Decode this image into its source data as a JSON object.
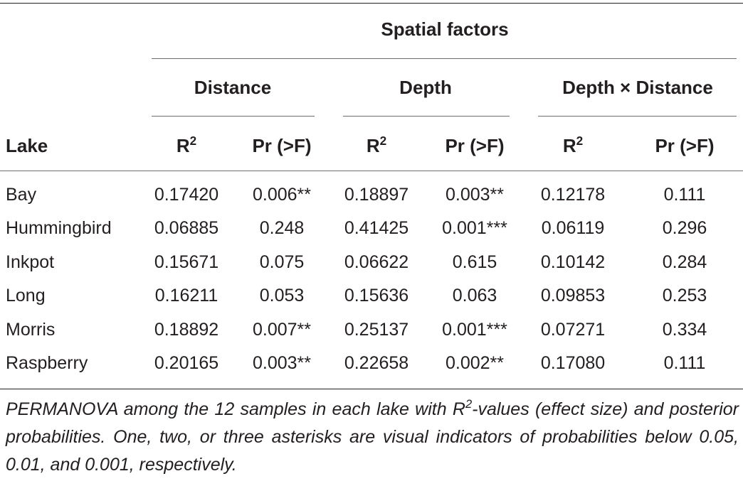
{
  "table": {
    "spanner": "Spatial factors",
    "groups": [
      "Distance",
      "Depth",
      "Depth × Distance"
    ],
    "row_header": "Lake",
    "r2_base": "R",
    "r2_sup": "2",
    "pr_label": "Pr (>F)",
    "rows": [
      {
        "lake": "Bay",
        "dist_r2": "0.17420",
        "dist_pr": "0.006**",
        "depth_r2": "0.18897",
        "depth_pr": "0.003**",
        "dd_r2": "0.12178",
        "dd_pr": "0.111"
      },
      {
        "lake": "Hummingbird",
        "dist_r2": "0.06885",
        "dist_pr": "0.248",
        "depth_r2": "0.41425",
        "depth_pr": "0.001***",
        "dd_r2": "0.06119",
        "dd_pr": "0.296"
      },
      {
        "lake": "Inkpot",
        "dist_r2": "0.15671",
        "dist_pr": "0.075",
        "depth_r2": "0.06622",
        "depth_pr": "0.615",
        "dd_r2": "0.10142",
        "dd_pr": "0.284"
      },
      {
        "lake": "Long",
        "dist_r2": "0.16211",
        "dist_pr": "0.053",
        "depth_r2": "0.15636",
        "depth_pr": "0.063",
        "dd_r2": "0.09853",
        "dd_pr": "0.253"
      },
      {
        "lake": "Morris",
        "dist_r2": "0.18892",
        "dist_pr": "0.007**",
        "depth_r2": "0.25137",
        "depth_pr": "0.001***",
        "dd_r2": "0.07271",
        "dd_pr": "0.334"
      },
      {
        "lake": "Raspberry",
        "dist_r2": "0.20165",
        "dist_pr": "0.003**",
        "depth_r2": "0.22658",
        "depth_pr": "0.002**",
        "dd_r2": "0.17080",
        "dd_pr": "0.111"
      }
    ]
  },
  "footnote": {
    "text_before": "PERMANOVA among the 12 samples in each lake with R",
    "sup": "2",
    "text_after": "-values (effect size) and posterior probabilities. One, two, or three asterisks are visual indicators of probabilities below 0.05, 0.01, and 0.001, respectively."
  }
}
